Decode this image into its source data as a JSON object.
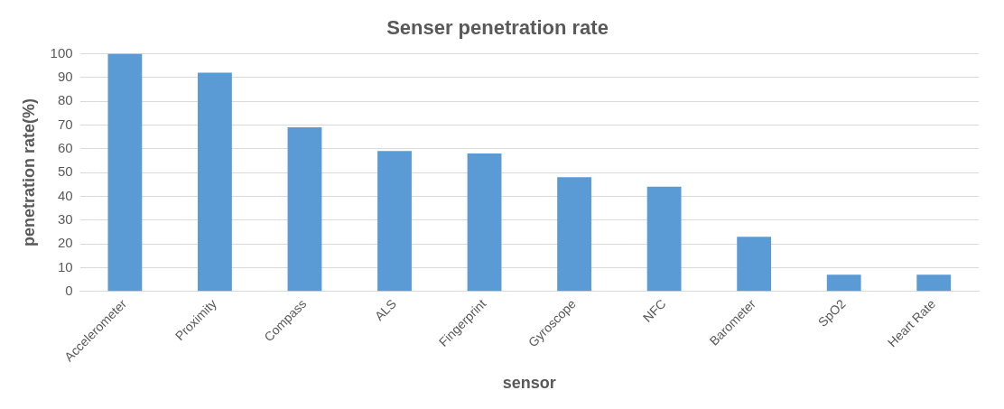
{
  "chart_data": {
    "type": "bar",
    "title": "Senser penetration rate",
    "xlabel": "sensor",
    "ylabel": "penetration rate(%)",
    "categories": [
      "Accelerometer",
      "Proximity",
      "Compass",
      "ALS",
      "Fingerprint",
      "Gyroscope",
      "NFC",
      "Barometer",
      "SpO2",
      "Heart Rate"
    ],
    "values": [
      100,
      92,
      69,
      59,
      58,
      48,
      44,
      23,
      7,
      7
    ],
    "color": "#5b9bd5",
    "ylim": [
      0,
      100
    ],
    "yticks": [
      0,
      10,
      20,
      30,
      40,
      50,
      60,
      70,
      80,
      90,
      100
    ],
    "grid": "y",
    "legend": false
  }
}
